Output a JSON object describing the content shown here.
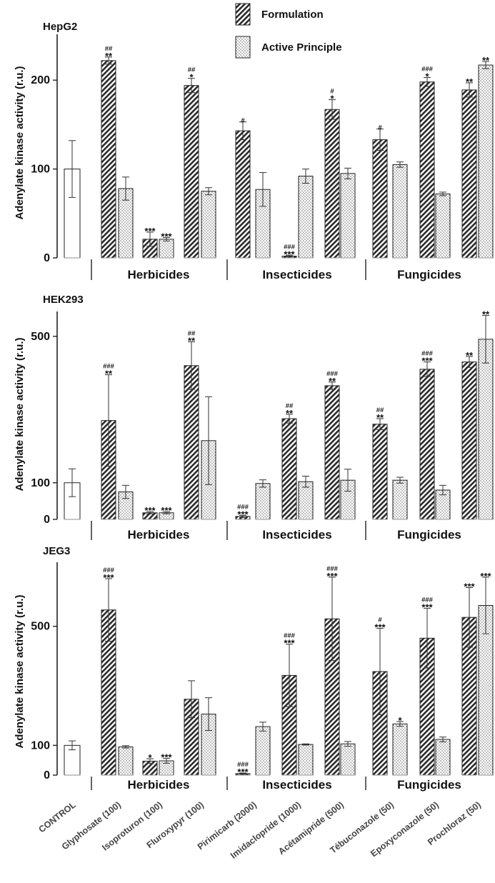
{
  "legend": [
    {
      "key": "formulation",
      "label": "Formulation"
    },
    {
      "key": "active",
      "label": "Active Principle"
    }
  ],
  "groups": [
    "Herbicides",
    "Insecticides",
    "Fungicides"
  ],
  "categories": [
    "CONTROL",
    "Glyphosate (100)",
    "Isoproturon (100)",
    "Fluroxypyr (100)",
    "Pirimicarb (2000)",
    "Imidaclopride (1000)",
    "Acétamipride (500)",
    "Tébuconazole (50)",
    "Epoxyconazole (50)",
    "Prochloraz (50)"
  ],
  "chart_data": [
    {
      "type": "bar",
      "title": "HepG2",
      "ylabel": "Adenylate kinase activity (r.u.)",
      "yticks": [
        0,
        100,
        200
      ],
      "ylim": [
        0,
        250
      ],
      "control": {
        "value": 100,
        "error": 32
      },
      "series": [
        {
          "name": "Formulation",
          "values": [
            222,
            21,
            194,
            143,
            2,
            167,
            133,
            198,
            189
          ],
          "errors": [
            4,
            8,
            8,
            10,
            1,
            11,
            12,
            5,
            8
          ],
          "sig": [
            "**",
            "***",
            "*",
            "",
            "***",
            "*",
            "",
            "*",
            "**"
          ],
          "sig_hash": [
            "##",
            "",
            "##",
            "#",
            "###",
            "#",
            "#",
            "###",
            ""
          ]
        },
        {
          "name": "Active Principle",
          "values": [
            78,
            21,
            75,
            77,
            92,
            95,
            105,
            72,
            217
          ],
          "errors": [
            13,
            2,
            4,
            19,
            8,
            6,
            3,
            2,
            4
          ],
          "sig": [
            "",
            "***",
            "",
            "",
            "",
            "",
            "",
            "",
            "**"
          ]
        }
      ]
    },
    {
      "type": "bar",
      "title": "HEK293",
      "ylabel": "Adenylate kinase activity (r.u.)",
      "yticks": [
        0,
        100,
        500
      ],
      "ylim": [
        0,
        560
      ],
      "control": {
        "value": 100,
        "error": 38
      },
      "series": [
        {
          "name": "Formulation",
          "values": [
            270,
            18,
            420,
            8,
            275,
            365,
            260,
            410,
            430
          ],
          "errors": [
            125,
            3,
            65,
            3,
            12,
            10,
            15,
            20,
            15
          ],
          "sig": [
            "**",
            "***",
            "**",
            "***",
            "**",
            "**",
            "**",
            "***",
            "**"
          ],
          "sig_hash": [
            "###",
            "",
            "##",
            "###",
            "##",
            "###",
            "##",
            "###",
            ""
          ]
        },
        {
          "name": "Active Principle",
          "values": [
            75,
            18,
            215,
            98,
            103,
            107,
            107,
            80,
            492
          ],
          "errors": [
            18,
            3,
            120,
            10,
            15,
            30,
            8,
            13,
            65
          ],
          "sig": [
            "",
            "***",
            "",
            "",
            "",
            "",
            "",
            "",
            "**"
          ]
        }
      ]
    },
    {
      "type": "bar",
      "title": "JEG3",
      "ylabel": "Adenylate kinase activity (r.u.)",
      "yticks": [
        0,
        100,
        500
      ],
      "ylim": [
        0,
        720
      ],
      "control": {
        "value": 100,
        "error": 15
      },
      "series": [
        {
          "name": "Formulation",
          "values": [
            555,
            47,
            255,
            5,
            335,
            525,
            348,
            460,
            530
          ],
          "errors": [
            105,
            8,
            62,
            2,
            105,
            140,
            145,
            100,
            100
          ],
          "sig": [
            "***",
            "*",
            "",
            "***",
            "***",
            "***",
            "***",
            "***",
            "***"
          ],
          "sig_hash": [
            "###",
            "",
            "",
            "###",
            "###",
            "###",
            "#",
            "###",
            ""
          ]
        },
        {
          "name": "Active Principle",
          "values": [
            95,
            48,
            205,
            163,
            103,
            105,
            172,
            120,
            570
          ],
          "errors": [
            4,
            8,
            55,
            15,
            2,
            8,
            8,
            8,
            95
          ],
          "sig": [
            "",
            "***",
            "",
            "",
            "",
            "",
            "*",
            "",
            "***"
          ]
        }
      ]
    }
  ]
}
